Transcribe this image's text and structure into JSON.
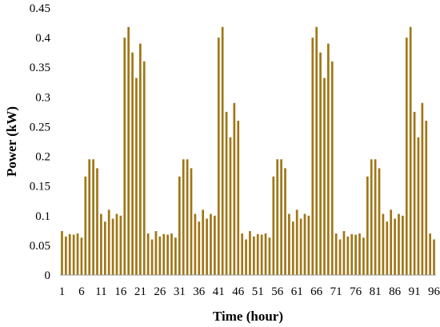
{
  "chart_data": {
    "type": "bar",
    "xlabel": "Time (hour)",
    "ylabel": "Power (kW)",
    "ylim": [
      0,
      0.45
    ],
    "y_ticks": [
      "0",
      "0.05",
      "0.1",
      "0.15",
      "0.2",
      "0.25",
      "0.3",
      "0.35",
      "0.4",
      "0.45"
    ],
    "x_tick_labels": [
      "1",
      "6",
      "11",
      "16",
      "21",
      "26",
      "31",
      "36",
      "41",
      "46",
      "51",
      "56",
      "61",
      "66",
      "71",
      "76",
      "81",
      "86",
      "91",
      "96"
    ],
    "bar_color": "#a07616",
    "axis_color": "#999999",
    "grid": false,
    "legend": "none",
    "categories": [
      1,
      2,
      3,
      4,
      5,
      6,
      7,
      8,
      9,
      10,
      11,
      12,
      13,
      14,
      15,
      16,
      17,
      18,
      19,
      20,
      21,
      22,
      23,
      24,
      25,
      26,
      27,
      28,
      29,
      30,
      31,
      32,
      33,
      34,
      35,
      36,
      37,
      38,
      39,
      40,
      41,
      42,
      43,
      44,
      45,
      46,
      47,
      48,
      49,
      50,
      51,
      52,
      53,
      54,
      55,
      56,
      57,
      58,
      59,
      60,
      61,
      62,
      63,
      64,
      65,
      66,
      67,
      68,
      69,
      70,
      71,
      72,
      73,
      74,
      75,
      76,
      77,
      78,
      79,
      80,
      81,
      82,
      83,
      84,
      85,
      86,
      87,
      88,
      89,
      90,
      91,
      92,
      93,
      94,
      95,
      96
    ],
    "values": [
      0.074,
      0.065,
      0.069,
      0.068,
      0.07,
      0.063,
      0.166,
      0.195,
      0.195,
      0.18,
      0.103,
      0.09,
      0.11,
      0.095,
      0.103,
      0.1,
      0.4,
      0.418,
      0.375,
      0.332,
      0.39,
      0.36,
      0.07,
      0.06,
      0.074,
      0.065,
      0.069,
      0.068,
      0.07,
      0.063,
      0.166,
      0.195,
      0.195,
      0.18,
      0.103,
      0.09,
      0.11,
      0.095,
      0.103,
      0.1,
      0.4,
      0.418,
      0.275,
      0.232,
      0.29,
      0.26,
      0.07,
      0.06,
      0.074,
      0.065,
      0.069,
      0.068,
      0.07,
      0.063,
      0.166,
      0.195,
      0.195,
      0.18,
      0.103,
      0.09,
      0.11,
      0.095,
      0.103,
      0.1,
      0.4,
      0.418,
      0.375,
      0.332,
      0.39,
      0.36,
      0.07,
      0.06,
      0.074,
      0.065,
      0.069,
      0.068,
      0.07,
      0.063,
      0.166,
      0.195,
      0.195,
      0.18,
      0.103,
      0.09,
      0.11,
      0.095,
      0.103,
      0.1,
      0.4,
      0.418,
      0.275,
      0.232,
      0.29,
      0.26,
      0.07,
      0.06
    ]
  }
}
